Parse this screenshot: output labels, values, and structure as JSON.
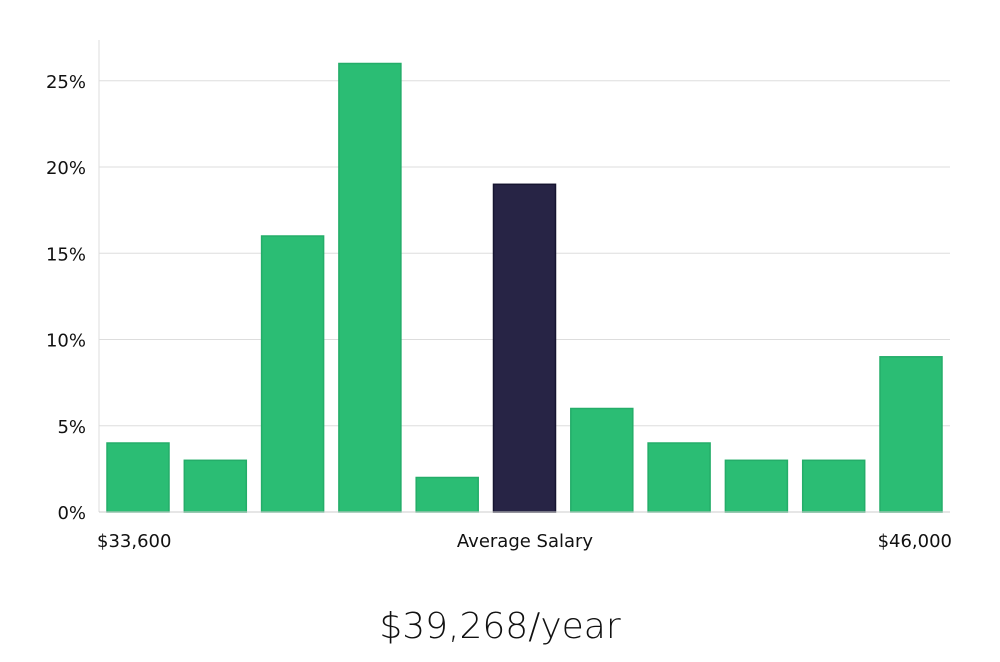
{
  "chart_data": {
    "type": "bar",
    "values": [
      4,
      3,
      16,
      26,
      2,
      19,
      6,
      4,
      3,
      3,
      9
    ],
    "highlight_index": 5,
    "bar_color": "#2bbd74",
    "highlight_color": "#272445",
    "y_ticks": [
      "0%",
      "5%",
      "10%",
      "15%",
      "20%",
      "25%"
    ],
    "ylim": [
      0,
      27
    ],
    "grid": true,
    "x_labels": {
      "left": "$33,600",
      "center": "Average Salary",
      "right": "$46,000"
    }
  },
  "summary": {
    "salary_text": "$39,268/year"
  }
}
